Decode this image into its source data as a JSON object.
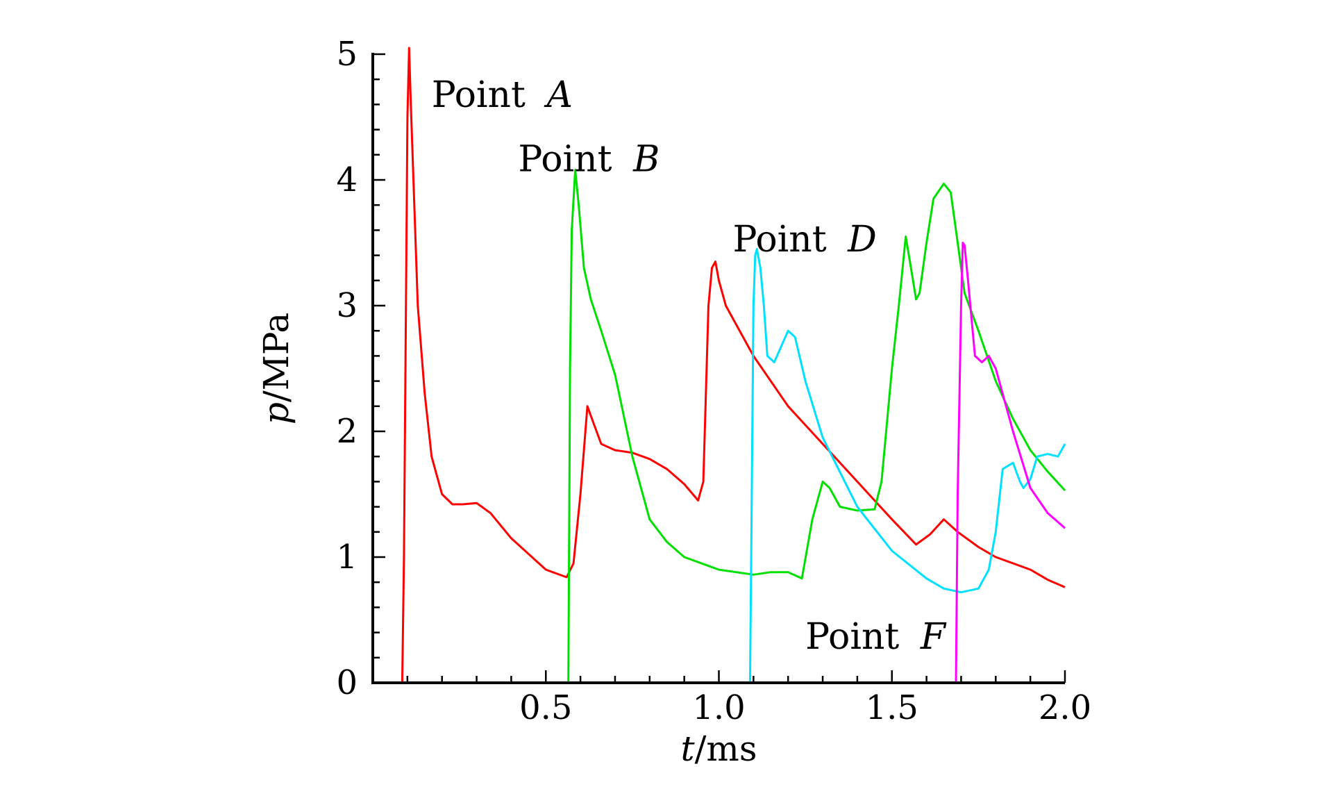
{
  "chart_data": {
    "type": "line",
    "xlabel": {
      "italic": "t",
      "unit": "/ms"
    },
    "ylabel": {
      "italic": "p",
      "unit": "/MPa"
    },
    "xlim": [
      0.0,
      2.0
    ],
    "ylim": [
      0,
      5
    ],
    "x_ticks": [
      0.5,
      1.0,
      1.5,
      2.0
    ],
    "x_tick_labels": [
      "0.5",
      "1.0",
      "1.5",
      "2.0"
    ],
    "y_ticks": [
      0,
      1,
      2,
      3,
      4,
      5
    ],
    "y_tick_labels": [
      "0",
      "1",
      "2",
      "3",
      "4",
      "5"
    ],
    "grid": false,
    "series": [
      {
        "color": "#ff0000",
        "x": [
          0.085,
          0.09,
          0.1,
          0.105,
          0.11,
          0.13,
          0.15,
          0.17,
          0.2,
          0.23,
          0.26,
          0.3,
          0.34,
          0.4,
          0.5,
          0.56,
          0.58,
          0.6,
          0.62,
          0.64,
          0.66,
          0.7,
          0.75,
          0.8,
          0.85,
          0.9,
          0.94,
          0.955,
          0.97,
          0.98,
          0.99,
          1.0,
          1.02,
          1.05,
          1.1,
          1.2,
          1.3,
          1.4,
          1.5,
          1.57,
          1.61,
          1.65,
          1.69,
          1.75,
          1.8,
          1.85,
          1.9,
          1.95,
          2.0
        ],
        "y": [
          0.0,
          1.0,
          4.5,
          5.05,
          4.6,
          3.0,
          2.3,
          1.8,
          1.5,
          1.42,
          1.42,
          1.43,
          1.35,
          1.15,
          0.9,
          0.84,
          0.95,
          1.5,
          2.2,
          2.05,
          1.9,
          1.85,
          1.83,
          1.78,
          1.7,
          1.58,
          1.45,
          1.6,
          3.0,
          3.3,
          3.35,
          3.2,
          3.0,
          2.85,
          2.6,
          2.2,
          1.9,
          1.6,
          1.3,
          1.1,
          1.18,
          1.3,
          1.2,
          1.08,
          1.0,
          0.95,
          0.9,
          0.82,
          0.76
        ]
      },
      {
        "color": "#00e000",
        "x": [
          0.565,
          0.57,
          0.575,
          0.585,
          0.595,
          0.61,
          0.63,
          0.66,
          0.7,
          0.75,
          0.8,
          0.85,
          0.9,
          1.0,
          1.1,
          1.15,
          1.2,
          1.24,
          1.27,
          1.3,
          1.32,
          1.35,
          1.4,
          1.45,
          1.47,
          1.5,
          1.52,
          1.54,
          1.555,
          1.57,
          1.58,
          1.6,
          1.62,
          1.65,
          1.67,
          1.69,
          1.71,
          1.75,
          1.8,
          1.85,
          1.9,
          1.95,
          2.0
        ],
        "y": [
          0.0,
          2.5,
          3.6,
          4.08,
          3.8,
          3.3,
          3.05,
          2.8,
          2.45,
          1.8,
          1.3,
          1.12,
          1.0,
          0.9,
          0.86,
          0.88,
          0.88,
          0.83,
          1.3,
          1.6,
          1.55,
          1.4,
          1.37,
          1.38,
          1.6,
          2.5,
          3.0,
          3.55,
          3.3,
          3.05,
          3.1,
          3.5,
          3.85,
          3.97,
          3.9,
          3.5,
          3.1,
          2.8,
          2.4,
          2.1,
          1.85,
          1.68,
          1.53
        ]
      },
      {
        "color": "#00e0ff",
        "x": [
          1.09,
          1.095,
          1.1,
          1.105,
          1.11,
          1.12,
          1.13,
          1.14,
          1.16,
          1.2,
          1.22,
          1.25,
          1.3,
          1.4,
          1.5,
          1.6,
          1.65,
          1.7,
          1.75,
          1.78,
          1.8,
          1.82,
          1.85,
          1.87,
          1.88,
          1.9,
          1.92,
          1.95,
          1.98,
          2.0
        ],
        "y": [
          0.0,
          1.5,
          3.0,
          3.4,
          3.45,
          3.3,
          3.0,
          2.6,
          2.55,
          2.8,
          2.75,
          2.4,
          1.95,
          1.4,
          1.05,
          0.83,
          0.75,
          0.72,
          0.75,
          0.9,
          1.2,
          1.7,
          1.75,
          1.6,
          1.55,
          1.62,
          1.8,
          1.82,
          1.8,
          1.9
        ]
      },
      {
        "color": "#ff00ff",
        "x": [
          1.685,
          1.69,
          1.7,
          1.705,
          1.71,
          1.72,
          1.73,
          1.74,
          1.76,
          1.78,
          1.8,
          1.85,
          1.9,
          1.95,
          2.0
        ],
        "y": [
          0.0,
          1.5,
          3.0,
          3.5,
          3.48,
          3.2,
          2.9,
          2.6,
          2.55,
          2.6,
          2.5,
          2.0,
          1.55,
          1.35,
          1.23
        ]
      }
    ],
    "annotations": [
      {
        "text": "Point ",
        "italic": "A",
        "x": 0.17,
        "y": 4.58
      },
      {
        "text": "Point ",
        "italic": "B",
        "x": 0.42,
        "y": 4.07
      },
      {
        "text": "Point ",
        "italic": "D",
        "x": 1.04,
        "y": 3.43
      },
      {
        "text": "Point ",
        "italic": "F",
        "x": 1.25,
        "y": 0.27
      }
    ]
  }
}
